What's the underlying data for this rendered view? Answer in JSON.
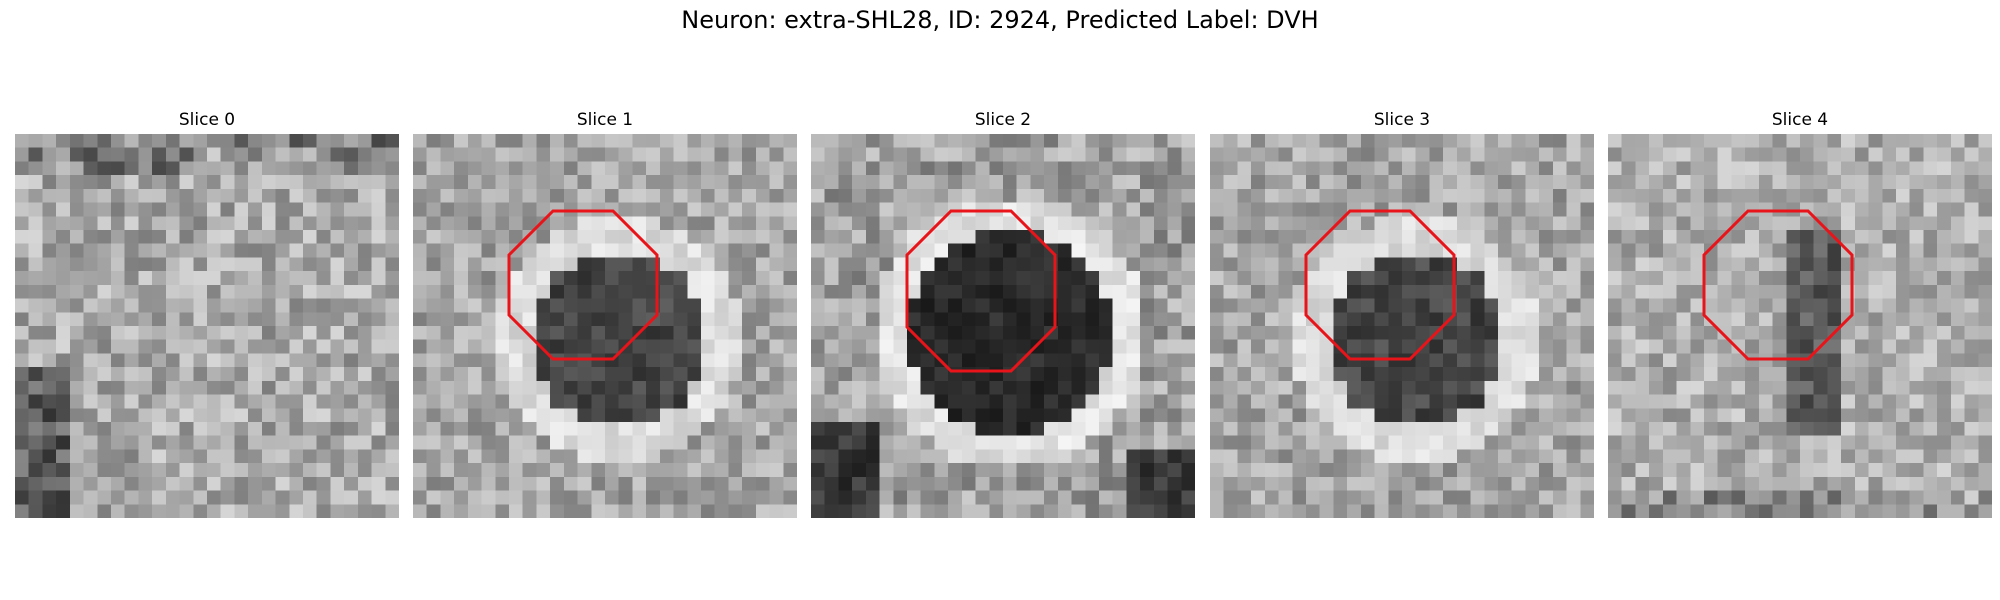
{
  "figure": {
    "suptitle": "Neuron: extra-SHL28, ID: 2924, Predicted Label: DVH",
    "roi_color": "#e8141a",
    "colormap": "gray",
    "panels": [
      {
        "title": "Slice 0",
        "has_roi": false,
        "pattern": "bright-noise"
      },
      {
        "title": "Slice 1",
        "has_roi": true,
        "pattern": "dark-cell-ring"
      },
      {
        "title": "Slice 2",
        "has_roi": true,
        "pattern": "dark-cell-large"
      },
      {
        "title": "Slice 3",
        "has_roi": true,
        "pattern": "dark-cell-ring"
      },
      {
        "title": "Slice 4",
        "has_roi": true,
        "pattern": "dark-streak"
      }
    ]
  }
}
